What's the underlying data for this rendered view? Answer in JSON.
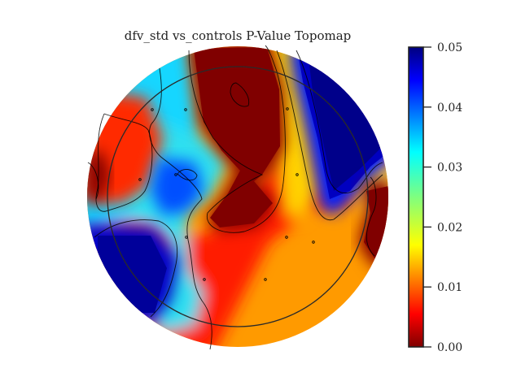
{
  "chart_data": {
    "type": "heatmap",
    "title": "dfv_std vs_controls P-Value Topomap",
    "colormap": "jet",
    "colorbar": {
      "vmin": 0.0,
      "vmax": 0.05,
      "ticks": [
        0.0,
        0.01,
        0.02,
        0.03,
        0.04,
        0.05
      ],
      "tick_labels": [
        "0.00",
        "0.01",
        "0.02",
        "0.03",
        "0.04",
        "0.05"
      ]
    },
    "xlabel": "",
    "ylabel": "",
    "grid": false
  }
}
